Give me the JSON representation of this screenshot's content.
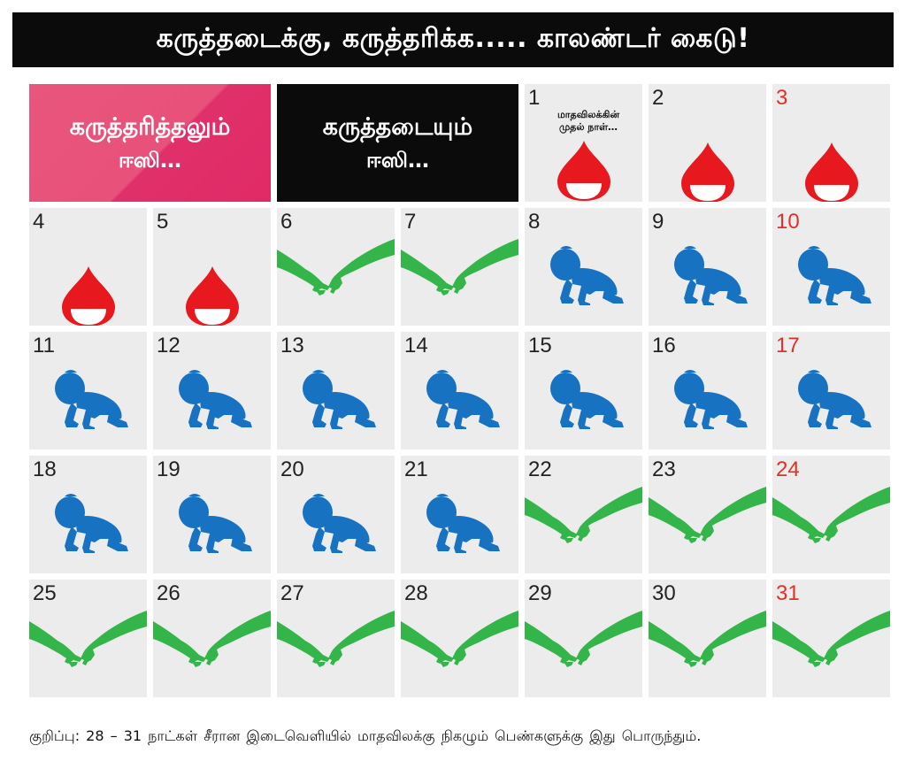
{
  "title": "கருத்தடைக்கு, கருத்தரிக்க..... காலண்டர் கைடு!",
  "legend": {
    "conceive": {
      "line1": "கருத்தரித்தலும்",
      "line2": "ஈஸி…"
    },
    "contraception": {
      "line1": "கருத்தடையும்",
      "line2": "ஈஸி…"
    }
  },
  "first_day_note": "மாதவிலக்கின் முதல் நாள்…",
  "icon_names": {
    "period": "blood-drop-icon",
    "safe": "holding-hands-icon",
    "fertile": "crawling-baby-icon"
  },
  "colors": {
    "period": "#e8181f",
    "safe": "#34b54a",
    "fertile": "#1872c2",
    "sunday": "#e0302a"
  },
  "days": [
    {
      "n": "1",
      "type": "period",
      "sunday": false,
      "note": true
    },
    {
      "n": "2",
      "type": "period",
      "sunday": false
    },
    {
      "n": "3",
      "type": "period",
      "sunday": true
    },
    {
      "n": "4",
      "type": "period",
      "sunday": false
    },
    {
      "n": "5",
      "type": "period",
      "sunday": false
    },
    {
      "n": "6",
      "type": "safe",
      "sunday": false
    },
    {
      "n": "7",
      "type": "safe",
      "sunday": false
    },
    {
      "n": "8",
      "type": "fertile",
      "sunday": false
    },
    {
      "n": "9",
      "type": "fertile",
      "sunday": false
    },
    {
      "n": "10",
      "type": "fertile",
      "sunday": true
    },
    {
      "n": "11",
      "type": "fertile",
      "sunday": false
    },
    {
      "n": "12",
      "type": "fertile",
      "sunday": false
    },
    {
      "n": "13",
      "type": "fertile",
      "sunday": false
    },
    {
      "n": "14",
      "type": "fertile",
      "sunday": false
    },
    {
      "n": "15",
      "type": "fertile",
      "sunday": false
    },
    {
      "n": "16",
      "type": "fertile",
      "sunday": false
    },
    {
      "n": "17",
      "type": "fertile",
      "sunday": true
    },
    {
      "n": "18",
      "type": "fertile",
      "sunday": false
    },
    {
      "n": "19",
      "type": "fertile",
      "sunday": false
    },
    {
      "n": "20",
      "type": "fertile",
      "sunday": false
    },
    {
      "n": "21",
      "type": "fertile",
      "sunday": false
    },
    {
      "n": "22",
      "type": "safe",
      "sunday": false
    },
    {
      "n": "23",
      "type": "safe",
      "sunday": false
    },
    {
      "n": "24",
      "type": "safe",
      "sunday": true
    },
    {
      "n": "25",
      "type": "safe",
      "sunday": false
    },
    {
      "n": "26",
      "type": "safe",
      "sunday": false
    },
    {
      "n": "27",
      "type": "safe",
      "sunday": false
    },
    {
      "n": "28",
      "type": "safe",
      "sunday": false
    },
    {
      "n": "29",
      "type": "safe",
      "sunday": false
    },
    {
      "n": "30",
      "type": "safe",
      "sunday": false
    },
    {
      "n": "31",
      "type": "safe",
      "sunday": true
    }
  ],
  "footer": "குறிப்பு: 28 – 31 நாட்கள் சீரான இடைவெளியில் மாதவிலக்கு நிகழும் பெண்களுக்கு இது பொருந்தும்."
}
